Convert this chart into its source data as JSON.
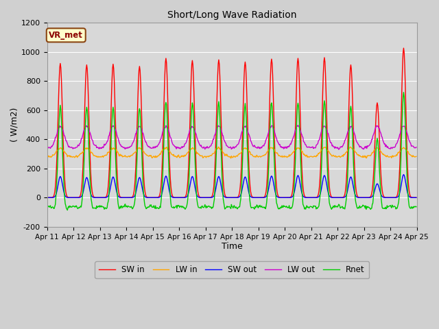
{
  "title": "Short/Long Wave Radiation",
  "xlabel": "Time",
  "ylabel": "( W/m2)",
  "ylim": [
    -200,
    1200
  ],
  "yticks": [
    -200,
    0,
    200,
    400,
    600,
    800,
    1000,
    1200
  ],
  "n_days": 14,
  "dt_hours": 0.5,
  "sw_in_peaks": [
    920,
    910,
    915,
    900,
    955,
    940,
    945,
    930,
    950,
    955,
    960,
    910,
    650,
    1025
  ],
  "sw_out_peaks": [
    145,
    138,
    142,
    138,
    148,
    145,
    145,
    142,
    148,
    152,
    152,
    142,
    95,
    158
  ],
  "lw_in_night": 280,
  "lw_in_day_boost": 60,
  "lw_out_night": 340,
  "lw_out_day_boost": 150,
  "colors": {
    "sw_in": "#ff0000",
    "lw_in": "#ffa500",
    "sw_out": "#0000ff",
    "lw_out": "#cc00cc",
    "rnet": "#00cc00"
  },
  "legend_labels": [
    "SW in",
    "LW in",
    "SW out",
    "LW out",
    "Rnet"
  ],
  "xtick_labels": [
    "Apr 11",
    "Apr 12",
    "Apr 13",
    "Apr 14",
    "Apr 15",
    "Apr 16",
    "Apr 17",
    "Apr 18",
    "Apr 19",
    "Apr 20",
    "Apr 21",
    "Apr 22",
    "Apr 23",
    "Apr 24",
    "Apr 25"
  ],
  "annotation_text": "VR_met",
  "fig_bg_color": "#d0d0d0",
  "plot_bg_color": "#d8d8d8",
  "line_width": 1.0,
  "peak_hour": 12.0,
  "sigma_sw": 2.0,
  "sigma_lw": 3.5
}
